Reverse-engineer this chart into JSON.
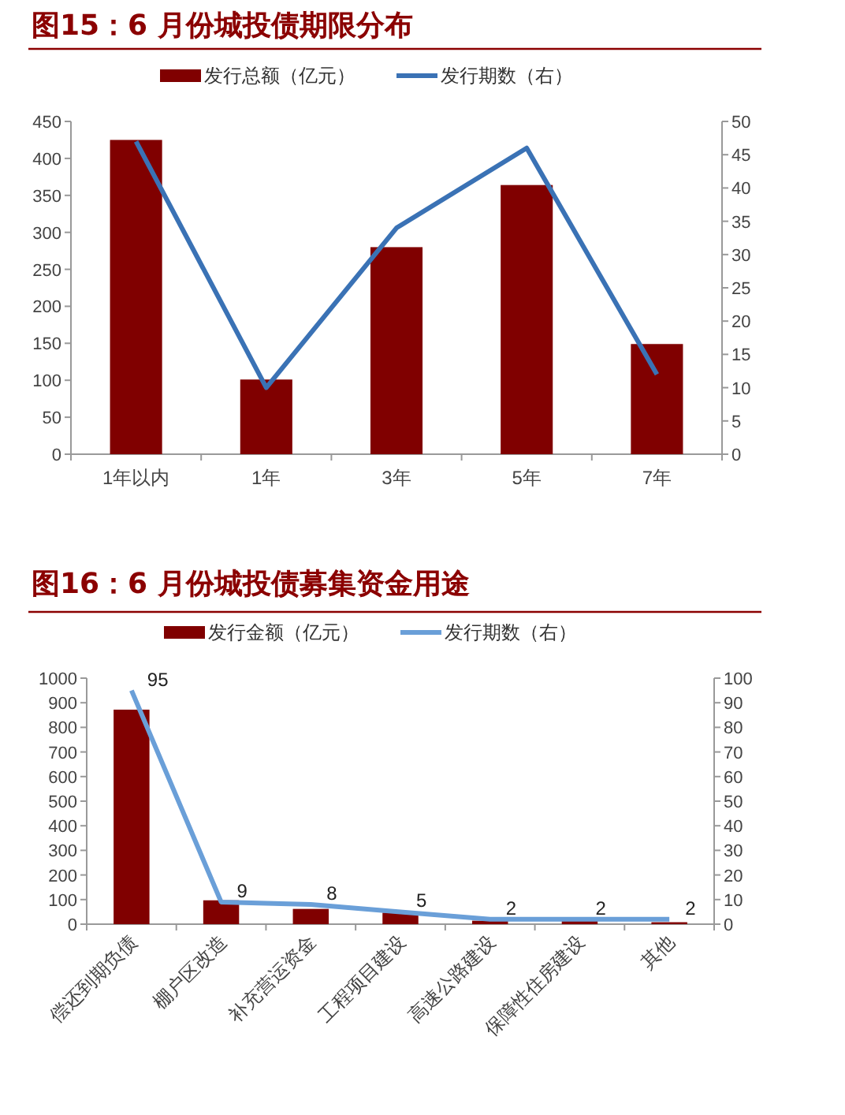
{
  "chart_data": [
    {
      "type": "bar",
      "title": "图15：6 月份城投债期限分布",
      "categories": [
        "1年以内",
        "1年",
        "3年",
        "5年",
        "7年"
      ],
      "series": [
        {
          "name": "发行总额（亿元）",
          "color": "#800000",
          "values": [
            425,
            101,
            280,
            364,
            149
          ]
        },
        {
          "name": "发行期数（右）",
          "type": "line",
          "axis": "y2",
          "color": "#3a72b5",
          "values": [
            47,
            10,
            34,
            46,
            12
          ]
        }
      ],
      "ylim": [
        0,
        450
      ],
      "yticks": [
        0,
        50,
        100,
        150,
        200,
        250,
        300,
        350,
        400,
        450
      ],
      "y2lim": [
        0,
        50
      ],
      "y2ticks": [
        0,
        5,
        10,
        15,
        20,
        25,
        30,
        35,
        40,
        45,
        50
      ],
      "legend": "top",
      "grid": false
    },
    {
      "type": "bar",
      "title": "图16：6 月份城投债募集资金用途",
      "categories": [
        "偿还到期负债",
        "棚户区改造",
        "补充营运资金",
        "工程项目建设",
        "高速公路建设",
        "保障性住房建设",
        "其他"
      ],
      "series": [
        {
          "name": "发行金额（亿元）",
          "color": "#800000",
          "values": [
            872,
            97,
            62,
            47,
            14,
            14,
            8
          ]
        },
        {
          "name": "发行期数（右）",
          "type": "line",
          "axis": "y2",
          "color": "#6a9fd8",
          "values": [
            95,
            9,
            8,
            5,
            2,
            2,
            2
          ],
          "value_labels": [
            "95",
            "9",
            "8",
            "5",
            "2",
            "2",
            "2"
          ]
        }
      ],
      "ylim": [
        0,
        1000
      ],
      "yticks": [
        0,
        100,
        200,
        300,
        400,
        500,
        600,
        700,
        800,
        900,
        1000
      ],
      "y2lim": [
        0,
        100
      ],
      "y2ticks": [
        0,
        10,
        20,
        30,
        40,
        50,
        60,
        70,
        80,
        90,
        100
      ],
      "legend": "top",
      "grid": false
    }
  ]
}
